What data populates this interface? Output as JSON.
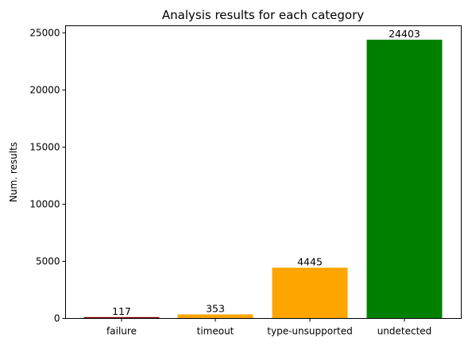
{
  "chart_data": {
    "type": "bar",
    "title": "Analysis results for each category",
    "xlabel": "",
    "ylabel": "Num. results",
    "categories": [
      "failure",
      "timeout",
      "type-unsupported",
      "undetected"
    ],
    "values": [
      117,
      353,
      4445,
      24403
    ],
    "colors": [
      "#8b0000",
      "#ffa500",
      "#ffa500",
      "#008000"
    ],
    "ylim": [
      0,
      25625
    ],
    "yticks": [
      0,
      5000,
      10000,
      15000,
      20000,
      25000
    ],
    "grid": false,
    "legend": "none"
  }
}
